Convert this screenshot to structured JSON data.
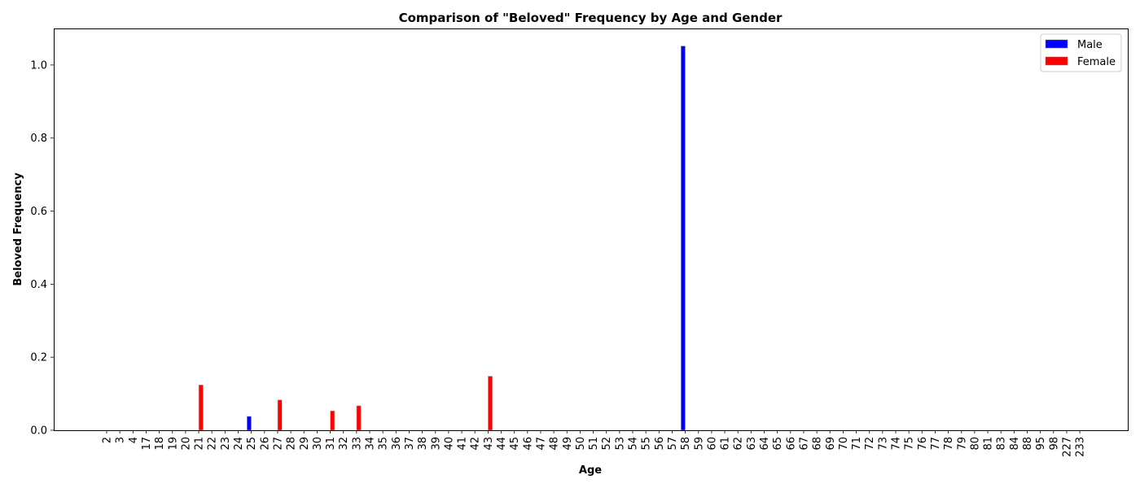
{
  "chart_data": {
    "type": "bar",
    "title": "Comparison of \"Beloved\" Frequency by Age and Gender",
    "xlabel": "Age",
    "ylabel": "Beloved Frequency",
    "ylim": [
      0,
      1.1
    ],
    "yticks": [
      "0.0",
      "0.2",
      "0.4",
      "0.6",
      "0.8",
      "1.0"
    ],
    "grid": false,
    "legend_position": "top-right",
    "categories": [
      "2",
      "3",
      "4",
      "17",
      "18",
      "19",
      "20",
      "21",
      "22",
      "23",
      "24",
      "25",
      "26",
      "27",
      "28",
      "29",
      "30",
      "31",
      "32",
      "33",
      "34",
      "35",
      "36",
      "37",
      "38",
      "39",
      "40",
      "41",
      "42",
      "43",
      "44",
      "45",
      "46",
      "47",
      "48",
      "49",
      "50",
      "51",
      "52",
      "53",
      "54",
      "55",
      "56",
      "57",
      "58",
      "59",
      "60",
      "61",
      "62",
      "63",
      "64",
      "65",
      "66",
      "67",
      "68",
      "69",
      "70",
      "71",
      "72",
      "73",
      "74",
      "75",
      "76",
      "77",
      "78",
      "79",
      "80",
      "81",
      "83",
      "84",
      "88",
      "95",
      "98",
      "227",
      "233"
    ],
    "series": [
      {
        "name": "Male",
        "color": "#0000ff",
        "values": [
          0,
          0,
          0,
          0,
          0,
          0,
          0,
          0,
          0,
          0,
          0,
          0.038,
          0,
          0,
          0,
          0,
          0,
          0,
          0,
          0,
          0,
          0,
          0,
          0,
          0,
          0,
          0,
          0,
          0,
          0,
          0,
          0,
          0,
          0,
          0,
          0,
          0,
          0,
          0,
          0,
          0,
          0,
          0,
          0,
          1.052,
          0,
          0,
          0,
          0,
          0,
          0,
          0,
          0,
          0,
          0,
          0,
          0,
          0,
          0,
          0,
          0,
          0,
          0,
          0,
          0,
          0,
          0,
          0,
          0,
          0,
          0,
          0,
          0,
          0,
          0
        ]
      },
      {
        "name": "Female",
        "color": "#ff0000",
        "values": [
          0,
          0,
          0,
          0,
          0,
          0,
          0,
          0.124,
          0,
          0,
          0,
          0,
          0,
          0.083,
          0,
          0,
          0,
          0.053,
          0,
          0.067,
          0,
          0,
          0,
          0,
          0,
          0,
          0,
          0,
          0,
          0.148,
          0,
          0,
          0,
          0,
          0,
          0,
          0,
          0,
          0,
          0,
          0,
          0,
          0,
          0,
          0,
          0,
          0,
          0,
          0,
          0,
          0,
          0,
          0,
          0,
          0,
          0,
          0,
          0,
          0,
          0,
          0,
          0,
          0,
          0,
          0,
          0,
          0,
          0,
          0,
          0,
          0,
          0,
          0,
          0,
          0
        ]
      }
    ]
  }
}
